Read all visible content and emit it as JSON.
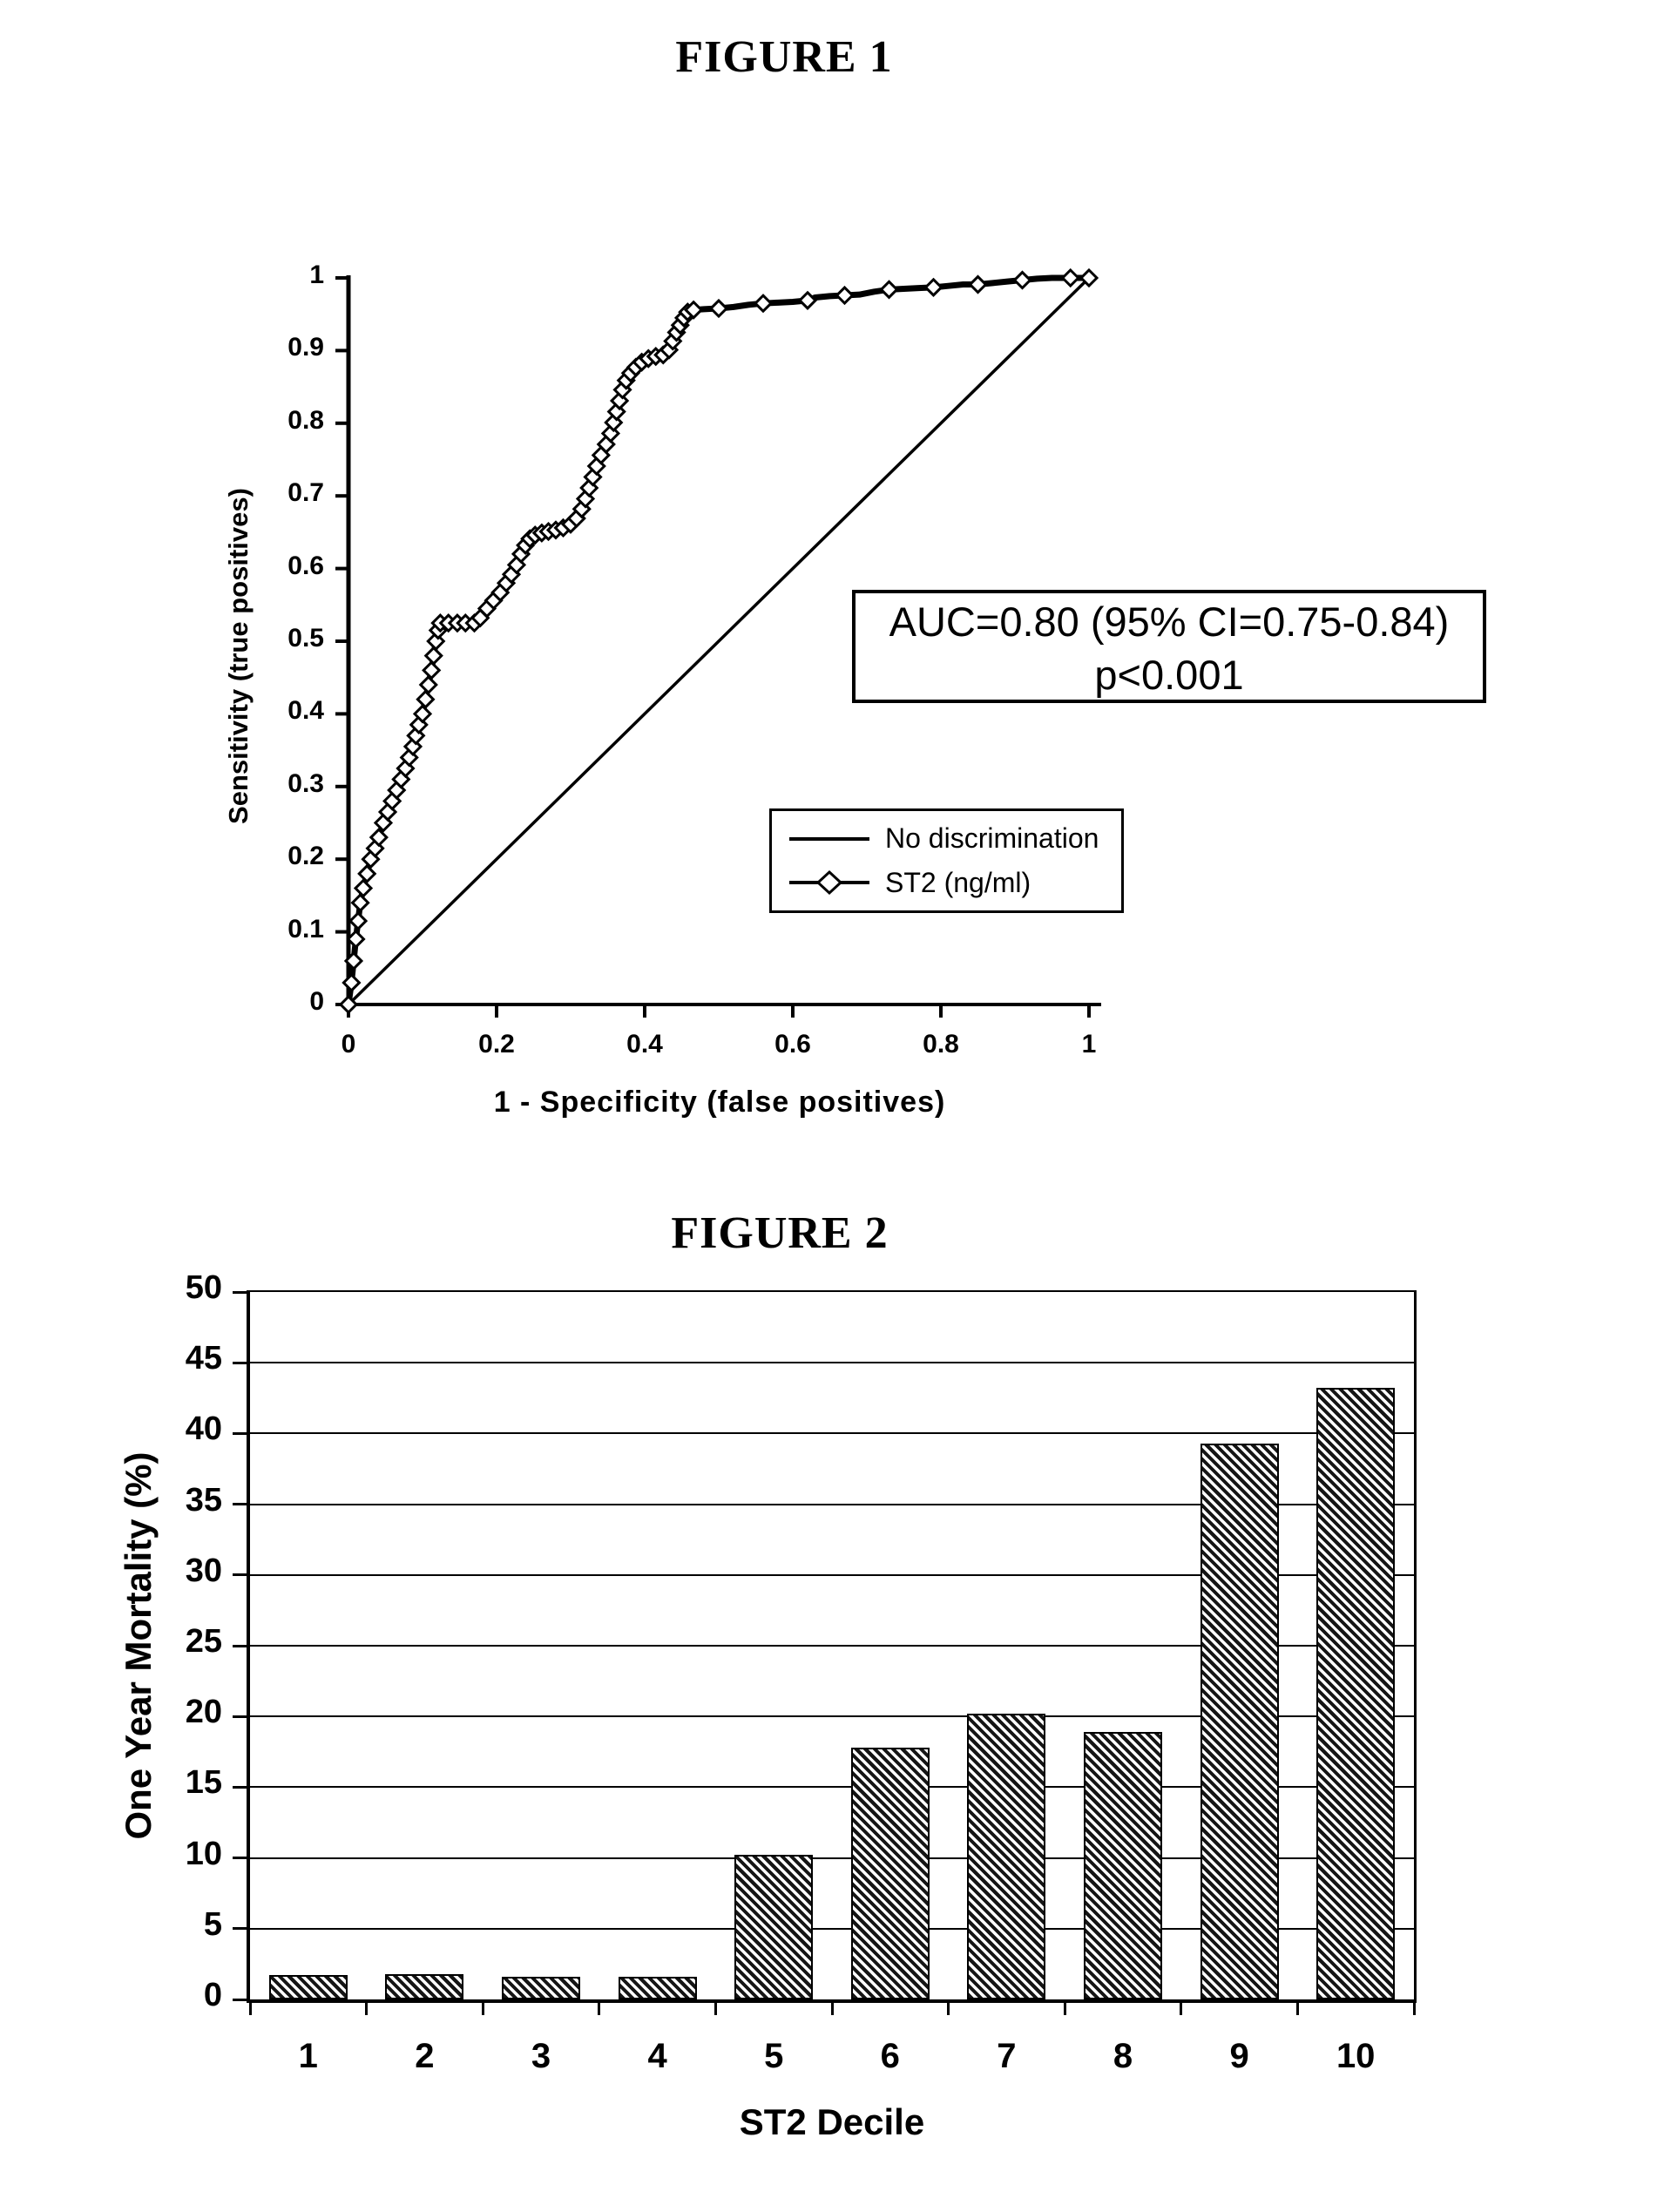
{
  "page": {
    "background": "#ffffff",
    "ink": "#000000"
  },
  "chart_data": [
    {
      "type": "line",
      "title": "FIGURE 1",
      "xlabel": "1 - Specificity (false positives)",
      "ylabel": "Sensitivity (true positives)",
      "xlim": [
        0,
        1
      ],
      "ylim": [
        0,
        1
      ],
      "grid": false,
      "legend_position": "lower-right-box",
      "x_ticks": [
        0,
        0.2,
        0.4,
        0.6,
        0.8,
        1
      ],
      "x_tick_labels": [
        "0",
        "0.2",
        "0.4",
        "0.6",
        "0.8",
        "1"
      ],
      "y_ticks": [
        0,
        0.1,
        0.2,
        0.3,
        0.4,
        0.5,
        0.6,
        0.7,
        0.8,
        0.9,
        1
      ],
      "y_tick_labels": [
        "0",
        "0.1",
        "0.2",
        "0.3",
        "0.4",
        "0.5",
        "0.6",
        "0.7",
        "0.8",
        "0.9",
        "1"
      ],
      "annotation": {
        "line1": "AUC=0.80 (95% CI=0.75-0.84)",
        "line2": "p<0.001"
      },
      "series": [
        {
          "name": "No discrimination",
          "style": "solid-line",
          "points": [
            [
              0,
              0
            ],
            [
              1,
              1
            ]
          ]
        },
        {
          "name": "ST2 (ng/ml)",
          "style": "line-with-diamond-markers",
          "points": [
            [
              0,
              0
            ],
            [
              0.004,
              0.03
            ],
            [
              0.007,
              0.06
            ],
            [
              0.01,
              0.09
            ],
            [
              0.013,
              0.115
            ],
            [
              0.016,
              0.14
            ],
            [
              0.02,
              0.16
            ],
            [
              0.025,
              0.18
            ],
            [
              0.03,
              0.2
            ],
            [
              0.036,
              0.215
            ],
            [
              0.041,
              0.23
            ],
            [
              0.047,
              0.25
            ],
            [
              0.053,
              0.265
            ],
            [
              0.059,
              0.28
            ],
            [
              0.065,
              0.295
            ],
            [
              0.071,
              0.31
            ],
            [
              0.077,
              0.325
            ],
            [
              0.082,
              0.34
            ],
            [
              0.087,
              0.355
            ],
            [
              0.091,
              0.37
            ],
            [
              0.095,
              0.385
            ],
            [
              0.1,
              0.4
            ],
            [
              0.104,
              0.42
            ],
            [
              0.108,
              0.44
            ],
            [
              0.112,
              0.46
            ],
            [
              0.115,
              0.48
            ],
            [
              0.118,
              0.5
            ],
            [
              0.121,
              0.515
            ],
            [
              0.124,
              0.525
            ],
            [
              0.135,
              0.525
            ],
            [
              0.147,
              0.525
            ],
            [
              0.158,
              0.525
            ],
            [
              0.17,
              0.525
            ],
            [
              0.178,
              0.532
            ],
            [
              0.187,
              0.545
            ],
            [
              0.196,
              0.556
            ],
            [
              0.205,
              0.567
            ],
            [
              0.213,
              0.58
            ],
            [
              0.22,
              0.592
            ],
            [
              0.227,
              0.605
            ],
            [
              0.233,
              0.62
            ],
            [
              0.239,
              0.632
            ],
            [
              0.245,
              0.641
            ],
            [
              0.252,
              0.646
            ],
            [
              0.261,
              0.649
            ],
            [
              0.27,
              0.651
            ],
            [
              0.28,
              0.653
            ],
            [
              0.29,
              0.656
            ],
            [
              0.3,
              0.661
            ],
            [
              0.308,
              0.669
            ],
            [
              0.315,
              0.682
            ],
            [
              0.32,
              0.696
            ],
            [
              0.325,
              0.711
            ],
            [
              0.33,
              0.726
            ],
            [
              0.335,
              0.741
            ],
            [
              0.341,
              0.756
            ],
            [
              0.348,
              0.771
            ],
            [
              0.354,
              0.786
            ],
            [
              0.358,
              0.801
            ],
            [
              0.362,
              0.816
            ],
            [
              0.366,
              0.831
            ],
            [
              0.37,
              0.846
            ],
            [
              0.375,
              0.859
            ],
            [
              0.381,
              0.869
            ],
            [
              0.388,
              0.877
            ],
            [
              0.396,
              0.884
            ],
            [
              0.405,
              0.889
            ],
            [
              0.415,
              0.892
            ],
            [
              0.425,
              0.894
            ],
            [
              0.433,
              0.901
            ],
            [
              0.438,
              0.913
            ],
            [
              0.443,
              0.925
            ],
            [
              0.448,
              0.935
            ],
            [
              0.453,
              0.945
            ],
            [
              0.458,
              0.953
            ],
            [
              0.466,
              0.956
            ],
            [
              0.48,
              0.957
            ],
            [
              0.5,
              0.958
            ],
            [
              0.52,
              0.96
            ],
            [
              0.54,
              0.963
            ],
            [
              0.56,
              0.965
            ],
            [
              0.58,
              0.966
            ],
            [
              0.6,
              0.967
            ],
            [
              0.62,
              0.969
            ],
            [
              0.63,
              0.973
            ],
            [
              0.65,
              0.975
            ],
            [
              0.67,
              0.976
            ],
            [
              0.69,
              0.977
            ],
            [
              0.71,
              0.981
            ],
            [
              0.73,
              0.984
            ],
            [
              0.75,
              0.985
            ],
            [
              0.77,
              0.986
            ],
            [
              0.79,
              0.987
            ],
            [
              0.81,
              0.989
            ],
            [
              0.83,
              0.991
            ],
            [
              0.85,
              0.991
            ],
            [
              0.87,
              0.993
            ],
            [
              0.89,
              0.995
            ],
            [
              0.91,
              0.997
            ],
            [
              0.93,
              0.999
            ],
            [
              0.95,
              1.0
            ],
            [
              0.975,
              1.0
            ],
            [
              1.0,
              1.0
            ]
          ],
          "marker_indices": [
            0,
            1,
            2,
            3,
            4,
            5,
            6,
            7,
            8,
            9,
            10,
            11,
            12,
            13,
            14,
            15,
            16,
            17,
            18,
            19,
            20,
            21,
            22,
            23,
            24,
            25,
            26,
            27,
            28,
            29,
            30,
            31,
            32,
            33,
            34,
            35,
            36,
            37,
            38,
            39,
            40,
            41,
            42,
            43,
            44,
            45,
            46,
            47,
            48,
            49,
            50,
            51,
            52,
            53,
            54,
            55,
            56,
            57,
            58,
            59,
            60,
            61,
            62,
            63,
            64,
            65,
            66,
            67,
            68,
            69,
            70,
            71,
            72,
            73,
            74,
            75,
            77,
            80,
            83,
            86,
            89,
            92,
            95,
            98,
            101,
            102
          ]
        }
      ]
    },
    {
      "type": "bar",
      "title": "FIGURE 2",
      "xlabel": "ST2 Decile",
      "ylabel": "One Year Mortality (%)",
      "categories": [
        "1",
        "2",
        "3",
        "4",
        "5",
        "6",
        "7",
        "8",
        "9",
        "10"
      ],
      "values": [
        1.7,
        1.8,
        1.6,
        1.6,
        10.2,
        17.8,
        20.2,
        18.9,
        39.3,
        43.2
      ],
      "ylim": [
        0,
        50
      ],
      "y_ticks": [
        0,
        5,
        10,
        15,
        20,
        25,
        30,
        35,
        40,
        45,
        50
      ],
      "y_tick_labels": [
        "0",
        "5",
        "10",
        "15",
        "20",
        "25",
        "30",
        "35",
        "40",
        "45",
        "50"
      ],
      "grid": true,
      "bar_style": "diagonal-hatch"
    }
  ]
}
